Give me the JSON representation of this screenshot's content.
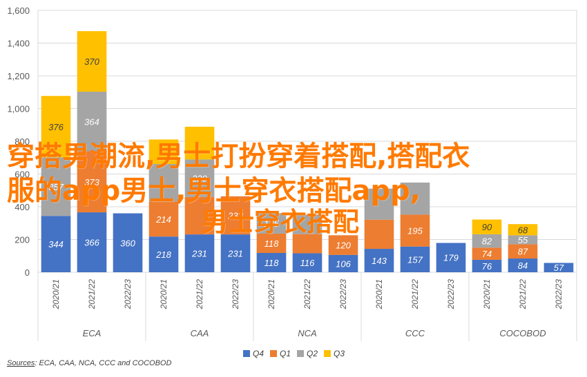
{
  "chart_data": {
    "type": "bar",
    "stacked": true,
    "ylim": [
      0,
      1600
    ],
    "yticks": [
      0,
      200,
      400,
      600,
      800,
      1000,
      1200,
      1400,
      1600
    ],
    "ytick_labels": [
      "0",
      "200",
      "400",
      "600",
      "800",
      "1,000",
      "1,200",
      "1,400",
      "1,600"
    ],
    "grid": true,
    "legend_position": "bottom",
    "groups": [
      {
        "name": "ECA",
        "categories": [
          "2020/21",
          "2021/22",
          "2022/23"
        ]
      },
      {
        "name": "CAA",
        "categories": [
          "2020/21",
          "2021/22",
          "2022/23"
        ]
      },
      {
        "name": "NCA",
        "categories": [
          "2020/21",
          "2021/22",
          "2022/23"
        ]
      },
      {
        "name": "CCC",
        "categories": [
          "2020/21",
          "2021/22",
          "2022/23"
        ]
      },
      {
        "name": "COCOBOD",
        "categories": [
          "2020/21",
          "2021/22",
          "2022/23"
        ]
      }
    ],
    "series": [
      {
        "name": "Q4",
        "color": "#4472c4",
        "values": [
          344,
          366,
          360,
          218,
          231,
          231,
          118,
          116,
          106,
          143,
          157,
          179,
          76,
          84,
          57
        ]
      },
      {
        "name": "Q1",
        "color": "#ed7d31",
        "values": [
          null,
          373,
          null,
          214,
          229,
          233,
          118,
          117,
          120,
          178,
          195,
          null,
          74,
          87,
          null
        ]
      },
      {
        "name": "Q2",
        "color": "#a5a5a5",
        "values": [
          357,
          364,
          null,
          229,
          229,
          null,
          125,
          120,
          null,
          190,
          196,
          null,
          82,
          55,
          null
        ]
      },
      {
        "name": "Q3",
        "color": "#ffc000",
        "values": [
          376,
          370,
          null,
          150,
          200,
          null,
          0,
          0,
          null,
          0,
          0,
          null,
          90,
          68,
          null
        ]
      }
    ],
    "segment_labels": [
      [
        "344",
        "366",
        "360",
        "218",
        "231",
        "231",
        "118",
        "116",
        "106",
        "143",
        "157",
        "179",
        "76",
        "84",
        "57"
      ],
      [
        "",
        "373",
        "",
        "214",
        "",
        "233",
        "118",
        "",
        "120",
        "",
        "195",
        "",
        "74",
        "87",
        ""
      ],
      [
        "357",
        "364",
        "",
        "",
        "229",
        "",
        "125",
        "",
        "",
        "",
        "",
        "",
        "82",
        "55",
        ""
      ],
      [
        "376",
        "370",
        "",
        "",
        "",
        "",
        "",
        "",
        "",
        "",
        "",
        "",
        "90",
        "68",
        ""
      ]
    ]
  },
  "source": {
    "label": "Sources",
    "text": ": ECA, CAA, NCA, CCC and COCOBOD"
  },
  "overlay": {
    "line1": "穿搭男潮流,男士打扮穿着搭配,搭配衣",
    "line2": "服的app男士,男士穿衣搭配app,",
    "line3": "男士穿衣搭配"
  }
}
